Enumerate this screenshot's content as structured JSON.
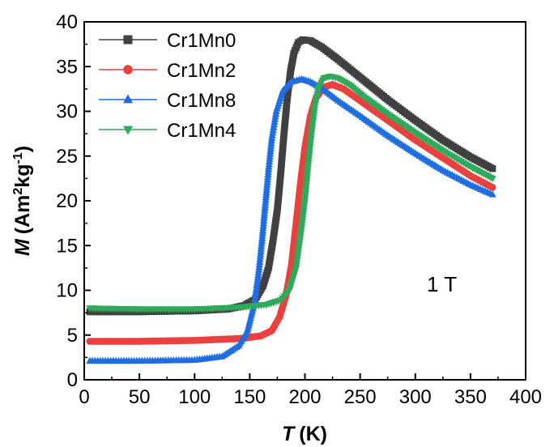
{
  "chart_data": {
    "type": "scatter",
    "title": "",
    "xlabel": {
      "symbol": "T",
      "unit": "(K)"
    },
    "ylabel": {
      "symbol": "M",
      "unit_parts": [
        "(Am",
        "2",
        "kg",
        "-1",
        ")"
      ]
    },
    "xlim": [
      0,
      400
    ],
    "ylim": [
      0,
      40
    ],
    "xticks": [
      0,
      50,
      100,
      150,
      200,
      250,
      300,
      350,
      400
    ],
    "yticks": [
      0,
      5,
      10,
      15,
      20,
      25,
      30,
      35,
      40
    ],
    "grid": false,
    "legend_position": "top-left",
    "annotation": "1 T",
    "series": [
      {
        "name": "Cr1Mn0",
        "color": "#404040",
        "marker": "square",
        "points": [
          [
            5,
            7.6
          ],
          [
            50,
            7.6
          ],
          [
            100,
            7.7
          ],
          [
            130,
            7.9
          ],
          [
            145,
            8.3
          ],
          [
            155,
            9.0
          ],
          [
            162,
            10.5
          ],
          [
            167,
            12.5
          ],
          [
            171,
            15.5
          ],
          [
            175,
            19.0
          ],
          [
            178,
            23.0
          ],
          [
            181,
            27.5
          ],
          [
            184,
            31.5
          ],
          [
            187,
            34.5
          ],
          [
            190,
            36.5
          ],
          [
            194,
            37.7
          ],
          [
            198,
            38.0
          ],
          [
            205,
            37.9
          ],
          [
            215,
            37.2
          ],
          [
            230,
            35.8
          ],
          [
            250,
            33.8
          ],
          [
            275,
            31.3
          ],
          [
            300,
            29.0
          ],
          [
            325,
            26.8
          ],
          [
            350,
            24.9
          ],
          [
            370,
            23.6
          ]
        ]
      },
      {
        "name": "Cr1Mn2",
        "color": "#e8413f",
        "marker": "circle",
        "points": [
          [
            5,
            4.3
          ],
          [
            50,
            4.3
          ],
          [
            100,
            4.4
          ],
          [
            140,
            4.6
          ],
          [
            160,
            4.9
          ],
          [
            170,
            5.5
          ],
          [
            177,
            7.0
          ],
          [
            183,
            9.5
          ],
          [
            188,
            13.0
          ],
          [
            192,
            17.5
          ],
          [
            196,
            22.0
          ],
          [
            200,
            26.0
          ],
          [
            205,
            29.5
          ],
          [
            210,
            31.5
          ],
          [
            217,
            32.7
          ],
          [
            225,
            33.0
          ],
          [
            235,
            32.5
          ],
          [
            250,
            31.2
          ],
          [
            275,
            29.0
          ],
          [
            300,
            26.8
          ],
          [
            325,
            24.8
          ],
          [
            350,
            22.8
          ],
          [
            370,
            21.5
          ]
        ]
      },
      {
        "name": "Cr1Mn8",
        "color": "#1f6ee0",
        "marker": "triangle-up",
        "points": [
          [
            5,
            2.1
          ],
          [
            50,
            2.1
          ],
          [
            100,
            2.2
          ],
          [
            125,
            2.6
          ],
          [
            140,
            3.8
          ],
          [
            148,
            5.5
          ],
          [
            154,
            8.5
          ],
          [
            158,
            12.0
          ],
          [
            161,
            15.5
          ],
          [
            164,
            19.5
          ],
          [
            167,
            23.5
          ],
          [
            170,
            27.0
          ],
          [
            174,
            30.0
          ],
          [
            180,
            32.3
          ],
          [
            188,
            33.3
          ],
          [
            197,
            33.6
          ],
          [
            205,
            33.3
          ],
          [
            215,
            32.6
          ],
          [
            230,
            31.2
          ],
          [
            250,
            29.5
          ],
          [
            275,
            27.3
          ],
          [
            300,
            25.3
          ],
          [
            325,
            23.4
          ],
          [
            350,
            21.8
          ],
          [
            370,
            20.7
          ]
        ]
      },
      {
        "name": "Cr1Mn4",
        "color": "#2faa5a",
        "marker": "triangle-down",
        "points": [
          [
            5,
            8.0
          ],
          [
            50,
            7.9
          ],
          [
            100,
            7.9
          ],
          [
            140,
            8.1
          ],
          [
            165,
            8.4
          ],
          [
            178,
            8.9
          ],
          [
            186,
            10.0
          ],
          [
            192,
            12.5
          ],
          [
            196,
            16.0
          ],
          [
            200,
            20.0
          ],
          [
            203,
            24.0
          ],
          [
            206,
            27.5
          ],
          [
            209,
            30.5
          ],
          [
            212,
            32.5
          ],
          [
            217,
            33.7
          ],
          [
            223,
            33.9
          ],
          [
            230,
            33.7
          ],
          [
            240,
            33.0
          ],
          [
            255,
            31.5
          ],
          [
            275,
            29.7
          ],
          [
            300,
            27.6
          ],
          [
            325,
            25.6
          ],
          [
            350,
            23.8
          ],
          [
            370,
            22.5
          ]
        ]
      }
    ]
  }
}
